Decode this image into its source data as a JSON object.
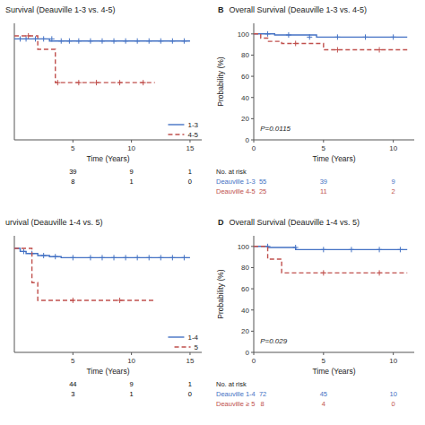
{
  "chart_data": [
    {
      "type": "step",
      "title": "Survival (Deauville 1-3 vs. 4-5)",
      "xlabel": "Time (Years)",
      "xlim": [
        0,
        16
      ],
      "xticks": [
        5,
        10,
        15
      ],
      "ylim": [
        0.0,
        1.12
      ],
      "yticks": [],
      "tick_labels": "x",
      "grid": false,
      "legend": "lower right",
      "series": [
        {
          "name": "1-3",
          "color": "#4472C4",
          "line_style": "solid",
          "x": [
            0,
            0.3,
            0.5,
            1.0,
            2.0,
            3.0,
            4.0,
            5.0,
            6.0,
            8.0,
            10.0,
            12.0,
            15.0
          ],
          "values": [
            0.97,
            0.97,
            0.97,
            0.97,
            0.97,
            0.95,
            0.95,
            0.95,
            0.95,
            0.95,
            0.95,
            0.95,
            0.95
          ],
          "censor_x": [
            0.5,
            1.0,
            1.8,
            2.5,
            3.2,
            4.0,
            4.7,
            5.5,
            6.5,
            7.5,
            8.5,
            9.5,
            10.5,
            11.5,
            12.5,
            13.5,
            14.5
          ],
          "censor_values": [
            0.97,
            0.97,
            0.97,
            0.97,
            0.97,
            0.95,
            0.95,
            0.95,
            0.95,
            0.95,
            0.95,
            0.95,
            0.95,
            0.95,
            0.95,
            0.95,
            0.95
          ]
        },
        {
          "name": "4-5",
          "color": "#C0504D",
          "line_style": "dashed",
          "x": [
            0,
            1.5,
            2.0,
            3.5,
            4.0,
            5.0,
            6.0,
            7.0,
            8.0,
            10.0,
            12.0
          ],
          "values": [
            1.0,
            1.0,
            0.87,
            0.55,
            0.55,
            0.55,
            0.55,
            0.55,
            0.55,
            0.55,
            0.55
          ],
          "censor_x": [
            1.2,
            3.7,
            5.5,
            7.0,
            9.0,
            11.0
          ],
          "censor_values": [
            1.0,
            0.55,
            0.55,
            0.55,
            0.55,
            0.55
          ]
        }
      ],
      "at_risk": {
        "x": [
          5,
          10,
          15
        ],
        "rows": [
          {
            "color": "black",
            "values": [
              39,
              9,
              1
            ]
          },
          {
            "color": "black",
            "values": [
              8,
              1,
              0
            ]
          }
        ]
      }
    },
    {
      "type": "step",
      "title_prefix": "B",
      "title": "Overall Survival (Deauville 1-3 vs. 4-5)",
      "xlabel": "Time (Years)",
      "ylabel": "Probability (%)",
      "xlim": [
        0,
        11.5
      ],
      "xticks": [
        0,
        5,
        10
      ],
      "ylim": [
        0,
        110
      ],
      "yticks": [
        0,
        20,
        40,
        60,
        80,
        100
      ],
      "grid": false,
      "annotation": "P=0.0115",
      "series": [
        {
          "color": "#4472C4",
          "line_style": "solid",
          "x": [
            0,
            0.5,
            1.5,
            2.0,
            3.0,
            4.5,
            5.0,
            6.0,
            8.0,
            10.0,
            11.0
          ],
          "values": [
            100,
            100,
            99,
            99,
            99,
            97,
            97,
            97,
            97,
            97,
            97
          ],
          "censor_x": [
            1.0,
            2.5,
            4.0,
            6.0,
            8.0,
            10.0
          ],
          "censor_values": [
            100,
            99,
            97,
            97,
            97,
            97
          ]
        },
        {
          "color": "#C0504D",
          "line_style": "dashed",
          "x": [
            0,
            0.5,
            1.0,
            2.0,
            3.0,
            5.0,
            6.0,
            8.0,
            10.0,
            11.0
          ],
          "values": [
            100,
            96,
            93,
            91,
            91,
            85,
            85,
            85,
            85,
            85
          ],
          "censor_x": [
            3.0,
            6.0,
            9.0
          ],
          "censor_values": [
            91,
            85,
            85
          ]
        }
      ],
      "at_risk": {
        "label": "No. at risk",
        "x": [
          5,
          10
        ],
        "rows": [
          {
            "label": "Deauville 1-3  55",
            "color": "#4472C4",
            "values": [
              39,
              9
            ]
          },
          {
            "label": "Deauville 4-5  25",
            "color": "#C0504D",
            "values": [
              11,
              2
            ]
          }
        ]
      }
    },
    {
      "type": "step",
      "title": "urvival (Deauville 1-4 vs. 5)",
      "xlabel": "Time (Years)",
      "xlim": [
        0,
        16
      ],
      "xticks": [
        5,
        10,
        15
      ],
      "ylim": [
        0.0,
        1.12
      ],
      "yticks": [],
      "tick_labels": "x",
      "grid": false,
      "legend": "lower right",
      "series": [
        {
          "name": "1-4",
          "color": "#4472C4",
          "line_style": "solid",
          "x": [
            0,
            0.5,
            1.0,
            2.0,
            3.0,
            4.0,
            5.0,
            6.0,
            8.0,
            10.0,
            12.0,
            15.0
          ],
          "values": [
            1.0,
            0.97,
            0.95,
            0.93,
            0.92,
            0.91,
            0.91,
            0.91,
            0.91,
            0.91,
            0.91,
            0.91
          ],
          "censor_x": [
            0.8,
            1.5,
            2.5,
            3.5,
            5.0,
            6.5,
            7.5,
            8.5,
            9.5,
            10.5,
            11.5,
            12.5,
            13.5,
            14.5
          ],
          "censor_values": [
            0.97,
            0.95,
            0.93,
            0.92,
            0.91,
            0.91,
            0.91,
            0.91,
            0.91,
            0.91,
            0.91,
            0.91,
            0.91,
            0.91
          ]
        },
        {
          "name": "5",
          "color": "#C0504D",
          "line_style": "dashed",
          "x": [
            0,
            0.5,
            1.5,
            2.0,
            4.0,
            6.0,
            8.0,
            10.0,
            12.0
          ],
          "values": [
            1.0,
            1.0,
            0.67,
            0.5,
            0.5,
            0.5,
            0.5,
            0.5,
            0.5
          ],
          "censor_x": [
            5.0,
            9.0
          ],
          "censor_values": [
            0.5,
            0.5
          ]
        }
      ],
      "at_risk": {
        "x": [
          5,
          10,
          15
        ],
        "rows": [
          {
            "color": "black",
            "values": [
              44,
              9,
              1
            ]
          },
          {
            "color": "black",
            "values": [
              3,
              1,
              0
            ]
          }
        ]
      }
    },
    {
      "type": "step",
      "title_prefix": "D",
      "title": "Overall Survival (Deauville 1-4 vs. 5)",
      "xlabel": "Time (Years)",
      "ylabel": "Probability (%)",
      "xlim": [
        0,
        11.5
      ],
      "xticks": [
        0,
        5,
        10
      ],
      "ylim": [
        0,
        110
      ],
      "yticks": [
        0,
        20,
        40,
        60,
        80,
        100
      ],
      "grid": false,
      "annotation": "P=0.029",
      "series": [
        {
          "color": "#4472C4",
          "line_style": "solid",
          "x": [
            0,
            0.5,
            1.0,
            2.0,
            3.0,
            4.0,
            5.0,
            6.0,
            8.0,
            10.0,
            11.0
          ],
          "values": [
            100,
            100,
            99,
            99,
            97,
            97,
            97,
            97,
            97,
            97,
            97
          ],
          "censor_x": [
            1.0,
            3.0,
            5.0,
            7.0,
            9.0,
            10.5
          ],
          "censor_values": [
            100,
            99,
            97,
            97,
            97,
            97
          ]
        },
        {
          "color": "#C0504D",
          "line_style": "dashed",
          "x": [
            0,
            1.0,
            2.0,
            3.0,
            4.0,
            5.0,
            6.0,
            8.0,
            10.0,
            11.0
          ],
          "values": [
            100,
            88,
            75,
            75,
            75,
            75,
            75,
            75,
            75,
            75
          ],
          "censor_x": [
            5.0,
            9.0
          ],
          "censor_values": [
            75,
            75
          ]
        }
      ],
      "at_risk": {
        "label": "No. at risk",
        "x": [
          5,
          10
        ],
        "rows": [
          {
            "label": "Deauville 1-4  72",
            "color": "#4472C4",
            "values": [
              45,
              10
            ]
          },
          {
            "label": "Deauville ≥ 5   8",
            "color": "#C0504D",
            "values": [
              4,
              0
            ]
          }
        ]
      }
    }
  ]
}
